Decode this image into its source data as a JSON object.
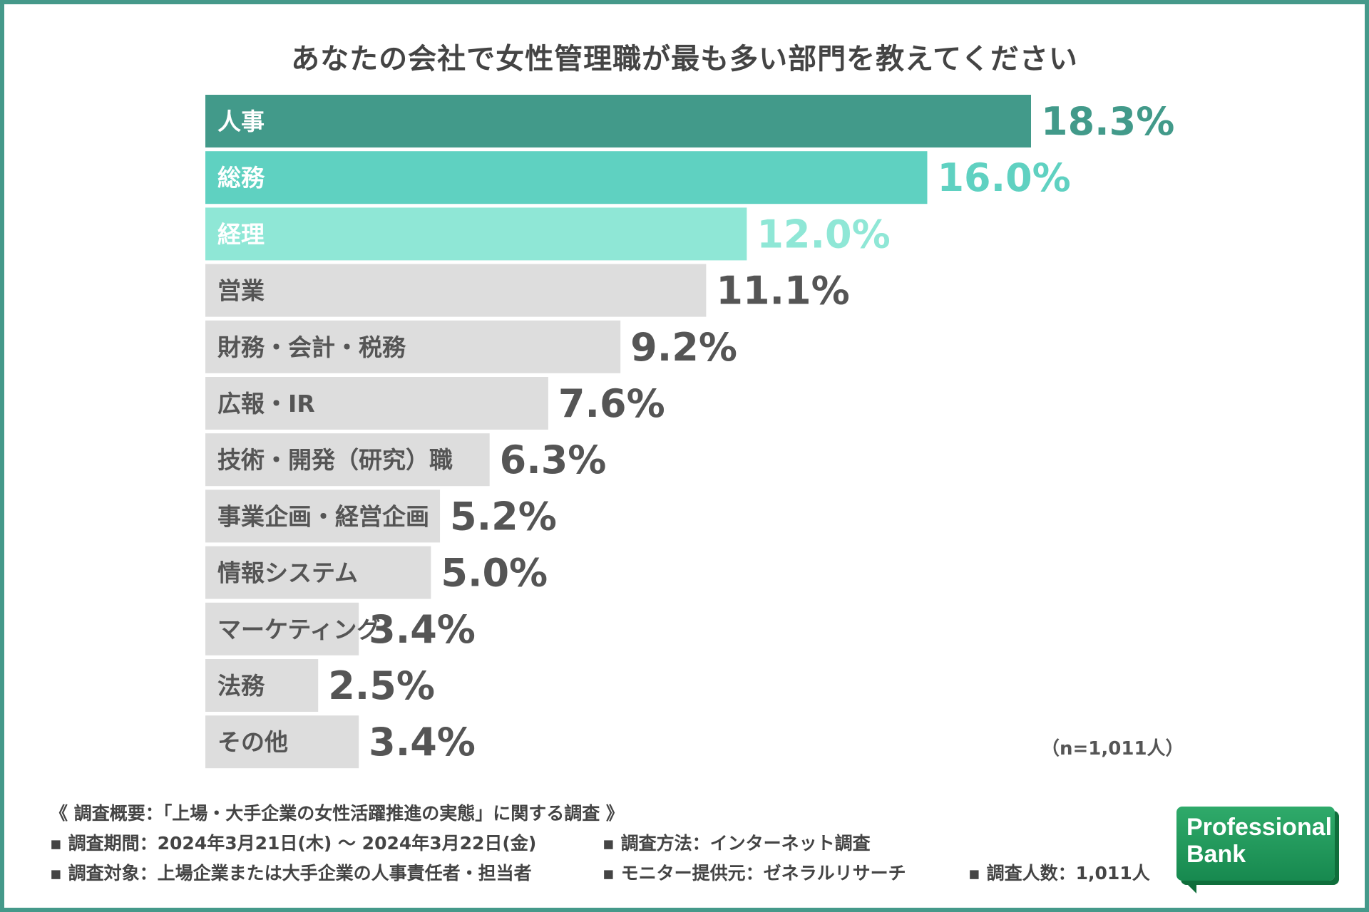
{
  "chart_data": {
    "type": "bar",
    "orientation": "horizontal",
    "title": "あなたの会社で女性管理職が最も多い部門を教えてください",
    "categories": [
      "人事",
      "総務",
      "経理",
      "営業",
      "財務・会計・税務",
      "広報・IR",
      "技術・開発（研究）職",
      "事業企画・経営企画",
      "情報システム",
      "マーケティング",
      "法務",
      "その他"
    ],
    "values": [
      18.3,
      16.0,
      12.0,
      11.1,
      9.2,
      7.6,
      6.3,
      5.2,
      5.0,
      3.4,
      2.5,
      3.4
    ],
    "value_labels": [
      "18.3%",
      "16.0%",
      "12.0%",
      "11.1%",
      "9.2%",
      "7.6%",
      "6.3%",
      "5.2%",
      "5.0%",
      "3.4%",
      "2.5%",
      "3.4%"
    ],
    "unit": "%",
    "xlim": [
      0,
      18.3
    ],
    "bar_colors": [
      "#429a8a",
      "#5fd1c1",
      "#8fe7d6",
      "#dddddd",
      "#dddddd",
      "#dddddd",
      "#dddddd",
      "#dddddd",
      "#dddddd",
      "#dddddd",
      "#dddddd",
      "#dddddd"
    ],
    "label_colors": [
      "#ffffff",
      "#ffffff",
      "#ffffff",
      "#555555",
      "#555555",
      "#555555",
      "#555555",
      "#555555",
      "#555555",
      "#555555",
      "#555555",
      "#555555"
    ],
    "value_colors": [
      "#429a8a",
      "#5fd1c1",
      "#8fe7d6",
      "#555555",
      "#555555",
      "#555555",
      "#555555",
      "#555555",
      "#555555",
      "#555555",
      "#555555",
      "#555555"
    ],
    "sample_note": "（n=1,011人）"
  },
  "footer": {
    "summary": "《 調査概要：「上場・大手企業の女性活躍推進の実態」に関する調査 》",
    "period": "▪ 調査期間：2024年3月21日(木) ～ 2024年3月22日(金)",
    "method": "▪ 調査方法：インターネット調査",
    "target": "▪ 調査対象：上場企業または大手企業の人事責任者・担当者",
    "provider": "▪ モニター提供元：ゼネラルリサーチ",
    "count": "▪ 調査人数：1,011人"
  },
  "logo": {
    "line1": "Professional",
    "line2": "Bank"
  },
  "colors": {
    "frame": "#45998a",
    "logo_bg": "#1f9a5b"
  }
}
